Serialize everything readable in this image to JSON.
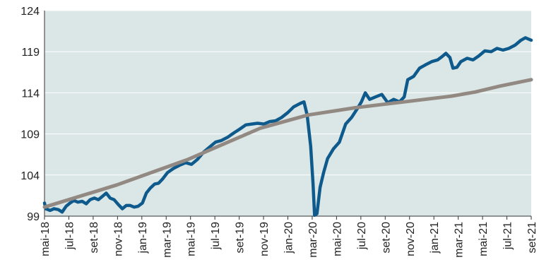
{
  "chart_data": {
    "type": "line",
    "title": "",
    "xlabel": "",
    "ylabel": "",
    "ylim": [
      99,
      124
    ],
    "y_ticks": [
      "99",
      "104",
      "109",
      "114",
      "119",
      "124"
    ],
    "x_ticks": [
      "mai-18",
      "jul-18",
      "set-18",
      "nov-18",
      "jan-19",
      "mar-19",
      "mai-19",
      "jul-19",
      "set-19",
      "nov-19",
      "jan-20",
      "mar-20",
      "mai-20",
      "jul-20",
      "set-20",
      "nov-20",
      "jan-21",
      "mar-21",
      "mai-21",
      "jul-21",
      "set-21"
    ],
    "x_range": [
      "2018-05-01",
      "2021-09-20"
    ],
    "grid": "horizontal",
    "legend": "none",
    "plot_background": "#dbe7e6",
    "series": [
      {
        "color": "#0f5a8c",
        "points": [
          [
            "2018-05-01",
            100.6
          ],
          [
            "2018-05-04",
            99.9
          ],
          [
            "2018-05-15",
            99.7
          ],
          [
            "2018-05-25",
            99.9
          ],
          [
            "2018-06-05",
            99.8
          ],
          [
            "2018-06-15",
            99.5
          ],
          [
            "2018-06-25",
            100.2
          ],
          [
            "2018-07-05",
            100.6
          ],
          [
            "2018-07-15",
            100.9
          ],
          [
            "2018-07-25",
            100.7
          ],
          [
            "2018-08-05",
            100.8
          ],
          [
            "2018-08-15",
            100.5
          ],
          [
            "2018-08-25",
            101.0
          ],
          [
            "2018-09-05",
            101.2
          ],
          [
            "2018-09-15",
            101.0
          ],
          [
            "2018-09-25",
            101.4
          ],
          [
            "2018-10-05",
            101.8
          ],
          [
            "2018-10-15",
            101.2
          ],
          [
            "2018-10-25",
            101.0
          ],
          [
            "2018-11-05",
            100.4
          ],
          [
            "2018-11-15",
            99.9
          ],
          [
            "2018-11-25",
            100.3
          ],
          [
            "2018-12-05",
            100.3
          ],
          [
            "2018-12-15",
            100.1
          ],
          [
            "2018-12-25",
            100.2
          ],
          [
            "2019-01-05",
            100.6
          ],
          [
            "2019-01-15",
            101.8
          ],
          [
            "2019-01-25",
            102.4
          ],
          [
            "2019-02-05",
            102.9
          ],
          [
            "2019-02-15",
            103.0
          ],
          [
            "2019-02-25",
            103.5
          ],
          [
            "2019-03-10",
            104.3
          ],
          [
            "2019-03-25",
            104.8
          ],
          [
            "2019-04-10",
            105.2
          ],
          [
            "2019-04-25",
            105.5
          ],
          [
            "2019-05-10",
            105.3
          ],
          [
            "2019-05-25",
            105.9
          ],
          [
            "2019-06-10",
            106.8
          ],
          [
            "2019-06-25",
            107.4
          ],
          [
            "2019-07-10",
            108.0
          ],
          [
            "2019-07-25",
            108.2
          ],
          [
            "2019-08-10",
            108.6
          ],
          [
            "2019-08-25",
            109.1
          ],
          [
            "2019-09-10",
            109.6
          ],
          [
            "2019-09-25",
            110.1
          ],
          [
            "2019-10-10",
            110.2
          ],
          [
            "2019-10-25",
            110.3
          ],
          [
            "2019-11-10",
            110.2
          ],
          [
            "2019-11-25",
            110.5
          ],
          [
            "2019-12-10",
            110.6
          ],
          [
            "2019-12-25",
            111.0
          ],
          [
            "2020-01-10",
            111.6
          ],
          [
            "2020-01-25",
            112.3
          ],
          [
            "2020-02-10",
            112.7
          ],
          [
            "2020-02-20",
            112.9
          ],
          [
            "2020-02-28",
            111.3
          ],
          [
            "2020-03-08",
            107.5
          ],
          [
            "2020-03-14",
            103.0
          ],
          [
            "2020-03-18",
            99.1
          ],
          [
            "2020-03-24",
            99.3
          ],
          [
            "2020-04-01",
            102.5
          ],
          [
            "2020-04-10",
            104.3
          ],
          [
            "2020-04-20",
            106.0
          ],
          [
            "2020-05-05",
            107.2
          ],
          [
            "2020-05-20",
            108.0
          ],
          [
            "2020-06-05",
            110.2
          ],
          [
            "2020-06-20",
            111.0
          ],
          [
            "2020-07-05",
            112.1
          ],
          [
            "2020-07-15",
            112.9
          ],
          [
            "2020-07-25",
            114.0
          ],
          [
            "2020-08-05",
            113.2
          ],
          [
            "2020-08-20",
            113.5
          ],
          [
            "2020-09-05",
            113.8
          ],
          [
            "2020-09-20",
            112.8
          ],
          [
            "2020-10-05",
            113.2
          ],
          [
            "2020-10-20",
            112.9
          ],
          [
            "2020-11-01",
            113.5
          ],
          [
            "2020-11-10",
            115.6
          ],
          [
            "2020-11-25",
            116.0
          ],
          [
            "2020-12-10",
            117.0
          ],
          [
            "2020-12-25",
            117.4
          ],
          [
            "2021-01-10",
            117.8
          ],
          [
            "2021-01-25",
            118.0
          ],
          [
            "2021-02-05",
            118.4
          ],
          [
            "2021-02-15",
            118.8
          ],
          [
            "2021-02-25",
            118.3
          ],
          [
            "2021-03-05",
            117.0
          ],
          [
            "2021-03-15",
            117.1
          ],
          [
            "2021-03-25",
            117.8
          ],
          [
            "2021-04-10",
            118.2
          ],
          [
            "2021-04-25",
            118.0
          ],
          [
            "2021-05-10",
            118.5
          ],
          [
            "2021-05-25",
            119.1
          ],
          [
            "2021-06-10",
            119.0
          ],
          [
            "2021-06-25",
            119.4
          ],
          [
            "2021-07-10",
            119.2
          ],
          [
            "2021-07-25",
            119.4
          ],
          [
            "2021-08-10",
            119.8
          ],
          [
            "2021-08-25",
            120.4
          ],
          [
            "2021-09-05",
            120.7
          ],
          [
            "2021-09-20",
            120.4
          ]
        ]
      },
      {
        "color": "#938983",
        "points": [
          [
            "2018-05-01",
            100.1
          ],
          [
            "2018-11-01",
            102.8
          ],
          [
            "2019-05-01",
            105.9
          ],
          [
            "2019-11-01",
            109.7
          ],
          [
            "2020-03-01",
            111.3
          ],
          [
            "2020-07-01",
            112.2
          ],
          [
            "2020-11-01",
            112.9
          ],
          [
            "2021-03-01",
            113.6
          ],
          [
            "2021-05-01",
            114.1
          ],
          [
            "2021-07-01",
            114.8
          ],
          [
            "2021-09-20",
            115.6
          ]
        ]
      }
    ]
  }
}
